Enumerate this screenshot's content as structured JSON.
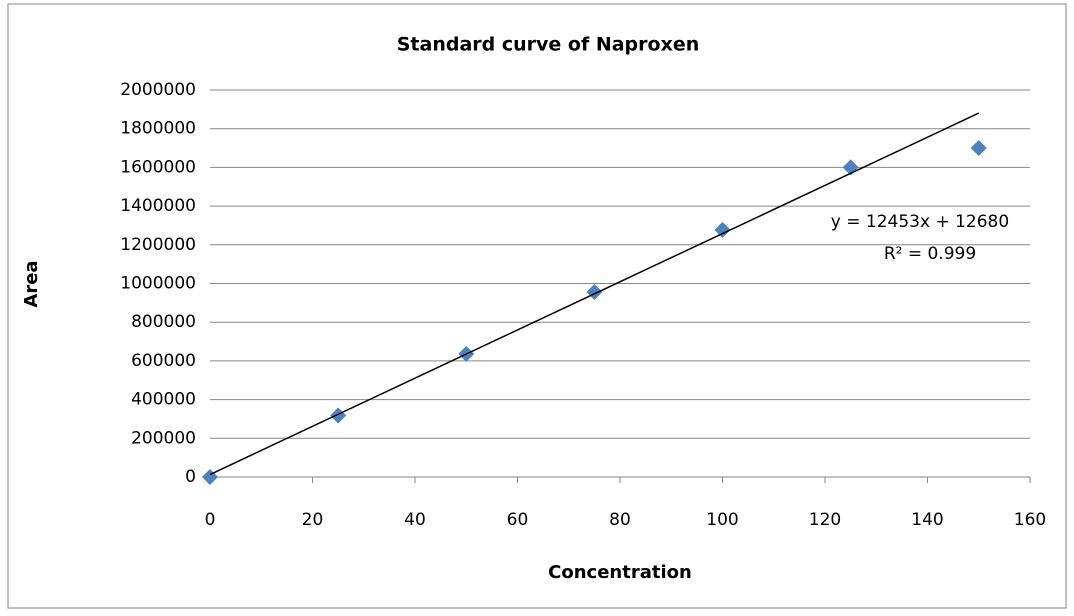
{
  "chart_data": {
    "type": "scatter",
    "title": "Standard curve of Naproxen",
    "x_label": "Concentration",
    "y_label": "Area",
    "x": [
      0,
      25,
      50,
      75,
      100,
      125,
      150
    ],
    "series": [
      {
        "name": "Area",
        "color": "#4f81bd",
        "values": [
          0,
          318000,
          636000,
          956000,
          1277000,
          1600000,
          1700000
        ]
      }
    ],
    "trendline": {
      "slope": 12453,
      "intercept": 12680,
      "color": "#000000",
      "equation": "y = 12453x + 12680",
      "r_squared": "R² = 0.999"
    },
    "xlim": [
      0,
      160
    ],
    "xticks": [
      0,
      20,
      40,
      60,
      80,
      100,
      120,
      140,
      160
    ],
    "ylim": [
      0,
      2000000
    ],
    "yticks": [
      0,
      200000,
      400000,
      600000,
      800000,
      1000000,
      1200000,
      1400000,
      1600000,
      1800000,
      2000000
    ],
    "grid": true
  }
}
